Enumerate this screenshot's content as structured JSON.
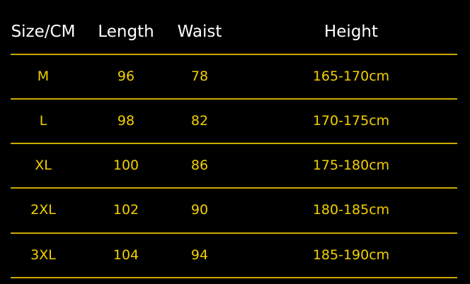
{
  "headers": [
    "Size/CM",
    "Length",
    "Waist",
    "Height"
  ],
  "rows": [
    [
      "M",
      "96",
      "78",
      "165-170cm"
    ],
    [
      "L",
      "98",
      "82",
      "170-175cm"
    ],
    [
      "XL",
      "100",
      "86",
      "175-180cm"
    ],
    [
      "2XL",
      "102",
      "90",
      "180-185cm"
    ],
    [
      "3XL",
      "104",
      "94",
      "185-190cm"
    ]
  ],
  "colors": {
    "background": "#000000",
    "header_text": "#ffffff",
    "cell_text": "#f2d000",
    "divider": "#c9a900"
  }
}
